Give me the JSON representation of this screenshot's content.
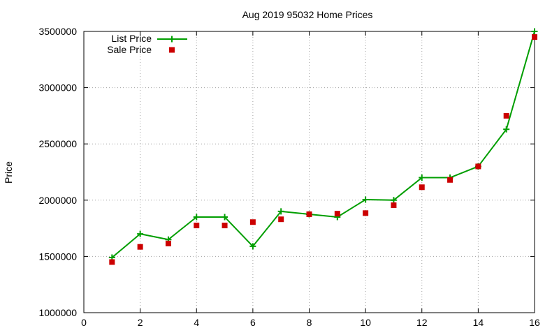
{
  "chart_data": {
    "type": "line",
    "title": "Aug 2019 95032 Home Prices",
    "xlabel": "",
    "ylabel": "Price",
    "xlim": [
      0,
      16
    ],
    "ylim": [
      1000000,
      3500000
    ],
    "xticks": [
      "0",
      "2",
      "4",
      "6",
      "8",
      "10",
      "12",
      "14",
      "16"
    ],
    "yticks": [
      "1000000",
      "1500000",
      "2000000",
      "2500000",
      "3000000",
      "3500000"
    ],
    "grid": true,
    "legend_position": "top-left",
    "series": [
      {
        "name": "List Price",
        "style": "line-with-plus-markers",
        "color": "#009e00",
        "x": [
          1,
          2,
          3,
          4,
          5,
          6,
          7,
          8,
          9,
          10,
          11,
          12,
          13,
          14,
          15,
          16
        ],
        "y": [
          1490000,
          1700000,
          1650000,
          1850000,
          1850000,
          1590000,
          1900000,
          1875000,
          1850000,
          2005000,
          2000000,
          2200000,
          2200000,
          2300000,
          2630000,
          3500000
        ]
      },
      {
        "name": "Sale Price",
        "style": "filled-square-markers",
        "color": "#cc0000",
        "x": [
          1,
          2,
          3,
          4,
          5,
          6,
          7,
          8,
          9,
          10,
          11,
          12,
          13,
          14,
          15,
          16
        ],
        "y": [
          1450000,
          1585000,
          1615000,
          1775000,
          1775000,
          1805000,
          1830000,
          1875000,
          1880000,
          1885000,
          1955000,
          2115000,
          2180000,
          2300000,
          2750000,
          3450000
        ]
      }
    ]
  }
}
